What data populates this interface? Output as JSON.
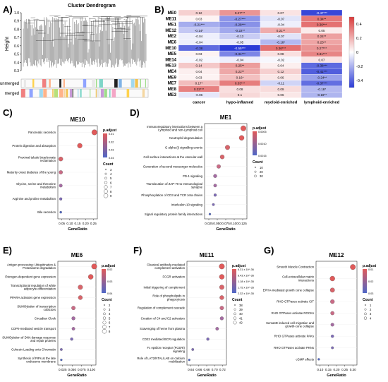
{
  "panel_letters": {
    "A": "A)",
    "B": "B)",
    "C": "C)",
    "D": "D)",
    "E": "E)",
    "F": "F)",
    "G": "G)"
  },
  "dendro": {
    "title": "Cluster Dendrogram",
    "ylabel": "Height",
    "yticks": [
      "1.0",
      "0.9",
      "0.8",
      "0.7",
      "0.6",
      "0.5",
      "0.4",
      "0.3"
    ],
    "row_labels": [
      "unmerged",
      "merged"
    ]
  },
  "heatmap": {
    "rows": [
      "ME0",
      "ME11",
      "ME1",
      "ME12",
      "ME2",
      "ME6",
      "ME10",
      "ME5",
      "ME14",
      "ME13",
      "ME4",
      "ME9",
      "ME7",
      "ME8",
      "ME3"
    ],
    "cols": [
      "cancer",
      "hypo-inflamed",
      "myeloid-enriched",
      "lymphoid-enriched"
    ],
    "cells": [
      [
        "0.12",
        "0.27***",
        "0.07",
        "-0.47***"
      ],
      [
        "0.03",
        "-0.27***",
        "-0.07",
        "0.34**"
      ],
      [
        "-0.21***",
        "-0.28***",
        "-0.04",
        "0.36***"
      ],
      [
        "-0.14*",
        "-0.22**",
        "0.21**",
        "0.05"
      ],
      [
        "-0.04",
        "-0.13",
        "-0.07",
        "0.24**"
      ],
      [
        "-0.04",
        "-0.05",
        "-0.18*",
        "0.23**"
      ],
      [
        "-0.38",
        "-0.55***",
        "0.36***",
        "0.27***"
      ],
      [
        "0.03",
        "-0.31***",
        "0.08",
        "0.31***"
      ],
      [
        "-0.02",
        "-0.04",
        "-0.02",
        "0.07"
      ],
      [
        "0.14",
        "0.25**",
        "0.04",
        "-0.38***"
      ],
      [
        "0.04",
        "0.22**",
        "0.12",
        "-0.41***"
      ],
      [
        "0.03",
        "0.16*",
        "0.06",
        "-0.24**"
      ],
      [
        "0.17*",
        "0.33***",
        "-0.11",
        "-0.37***"
      ],
      [
        "0.32***",
        "0.08",
        "0.09",
        "-0.18*"
      ],
      [
        "-0.06",
        "0.1",
        "0.06",
        "-0.19**"
      ]
    ],
    "values": [
      [
        0.12,
        0.27,
        0.07,
        -0.47
      ],
      [
        0.03,
        -0.27,
        -0.07,
        0.34
      ],
      [
        -0.21,
        -0.28,
        -0.04,
        0.36
      ],
      [
        -0.14,
        -0.22,
        0.21,
        0.05
      ],
      [
        -0.04,
        -0.13,
        -0.07,
        0.24
      ],
      [
        -0.04,
        -0.05,
        -0.18,
        0.23
      ],
      [
        -0.38,
        -0.55,
        0.36,
        0.27
      ],
      [
        0.03,
        -0.31,
        0.08,
        0.31
      ],
      [
        -0.02,
        -0.04,
        -0.02,
        0.07
      ],
      [
        0.14,
        0.25,
        0.04,
        -0.38
      ],
      [
        0.04,
        0.22,
        0.12,
        -0.41
      ],
      [
        0.03,
        0.16,
        0.06,
        -0.24
      ],
      [
        0.17,
        0.33,
        -0.11,
        -0.37
      ],
      [
        0.32,
        0.08,
        0.09,
        -0.18
      ],
      [
        -0.06,
        0.1,
        0.06,
        -0.19
      ]
    ],
    "scale_ticks": [
      "0.4",
      "0.2",
      "0",
      "-0.2",
      "-0.4"
    ],
    "colors": {
      "neg": "#2b3bd6",
      "mid": "#ffffff",
      "pos": "#d93a3a"
    }
  },
  "dot_common": {
    "xlabel": "GeneRatio",
    "padj_label": "p.adjust",
    "count_label": "Count"
  },
  "chart_data": [
    {
      "id": "C",
      "type": "scatter",
      "title": "ME10",
      "terms": [
        "Pancreatic secretion",
        "Protein digestion and absorption",
        "Proximal tubule bicarbonate reclamation",
        "Maturity onset diabetes of the young",
        "Glycine, serine and threonine metabolism",
        "Arginine and proline metabolism",
        "Bile secretion"
      ],
      "x": [
        0.25,
        0.15,
        0.02,
        0.02,
        0.02,
        0.02,
        0.02
      ],
      "xticks": [
        "0.05",
        "0.10",
        "0.15",
        "0.20",
        "0.25"
      ],
      "xlim": [
        0.0,
        0.27
      ],
      "padj_ticks": [
        "0.01",
        "0.02",
        "0.03",
        "0.04"
      ],
      "count_ticks": [
        "3",
        "4",
        "5",
        "6",
        "7",
        "8",
        "9"
      ]
    },
    {
      "id": "D",
      "type": "scatter",
      "title": "ME1",
      "terms": [
        "Immunoregulatory interactions between a Lymphoid and non-Lymphoid cell",
        "Neutrophil degranulation",
        "G alpha (i) signalling events",
        "Cell surface interactions at the vascular wall",
        "Generation of second messenger molecules",
        "PD-1 signaling",
        "Translocation of ZAP-70 to Immunological synapse",
        "Phosphorylation of CD3 and TCR zeta chains",
        "Interleukin-10 signaling",
        "Signal regulatory protein family interactions"
      ],
      "x": [
        0.125,
        0.12,
        0.08,
        0.065,
        0.055,
        0.045,
        0.045,
        0.045,
        0.04,
        0.03
      ],
      "xticks": [
        "0.025",
        "0.050",
        "0.075",
        "0.100",
        "0.125"
      ],
      "xlim": [
        0.015,
        0.135
      ],
      "padj_ticks": [
        "0.0005",
        "0.0010",
        "0.0015"
      ],
      "count_ticks": [
        "10",
        "20",
        "30"
      ]
    },
    {
      "id": "E",
      "type": "scatter",
      "title": "ME6",
      "terms": [
        "Antigen processing: Ubiquitination & Proteasome degradation",
        "Estrogen-dependent gene expression",
        "Transcriptional regulation of white adipocyte differentiation",
        "PPARA activates gene expression",
        "SUMOylation of transcription cofactors",
        "Circadian Clock",
        "COPII-mediated vesicle transport",
        "SUMOylation of DNA damage response and repair proteins",
        "Cohesin Loading onto Chromatin",
        "Synthesis of PIPs at the late endosome membrane"
      ],
      "x": [
        0.12,
        0.11,
        0.08,
        0.08,
        0.06,
        0.06,
        0.06,
        0.055,
        0.025,
        0.025
      ],
      "xticks": [
        "0.025",
        "0.050",
        "0.075",
        "0.100"
      ],
      "xlim": [
        0.015,
        0.125
      ],
      "padj_ticks": [
        "0.02",
        "0.03",
        "0.04"
      ],
      "count_ticks": [
        "2",
        "3",
        "4",
        "5",
        "6",
        "7",
        "8"
      ]
    },
    {
      "id": "F",
      "type": "scatter",
      "title": "ME11",
      "terms": [
        "Classical antibody-mediated complement activation",
        "FCGR activation",
        "Initial triggering of complement",
        "Role of phospholipids in phagocytosis",
        "Regulation of complement cascade",
        "Creation of C4 and C2 activators",
        "Scavenging of heme from plasma",
        "CD22 mediated BCR regulation",
        "Fc epsilon receptor (FCERI) signaling",
        "Role of LAT2/NTAL/LAB on calcium mobilization"
      ],
      "x": [
        0.9,
        0.9,
        0.9,
        0.9,
        0.9,
        0.9,
        0.86,
        0.78,
        0.65,
        0.62
      ],
      "xticks": [
        "0.64",
        "0.66",
        "0.68",
        "0.70",
        "0.72"
      ],
      "xlim": [
        0.6,
        0.94
      ],
      "padj_ticks": [
        "6.31 x 10^-36",
        "8.43 x 10^-36",
        "1.18 x 10^-35",
        "1.75 x 10^-35",
        "2.32 x 10^-35"
      ],
      "count_ticks": [
        "38",
        "39",
        "40",
        "41",
        "42"
      ]
    },
    {
      "id": "G",
      "type": "scatter",
      "title": "ME12",
      "terms": [
        "Smooth Muscle Contraction",
        "Cell-extracellular matrix interactions",
        "EPHA-mediated growth cone collapse",
        "RHO GTPases activate CIT",
        "RHO GTPases activate ROCKs",
        "Sema4D induced cell migration and growth-cone collapse",
        "RHO GTPases activate PAKs",
        "RHO GTPases activate PKNs",
        "cGMP effects"
      ],
      "x": [
        0.3,
        0.15,
        0.15,
        0.15,
        0.15,
        0.15,
        0.15,
        0.15,
        0.05
      ],
      "xticks": [
        "0.10",
        "0.15",
        "0.20",
        "0.25",
        "0.30"
      ],
      "xlim": [
        0.03,
        0.33
      ],
      "padj_ticks": [
        "0.01",
        "0.02",
        "0.03"
      ],
      "count_ticks": [
        "1",
        "2",
        "3",
        "4"
      ]
    }
  ]
}
